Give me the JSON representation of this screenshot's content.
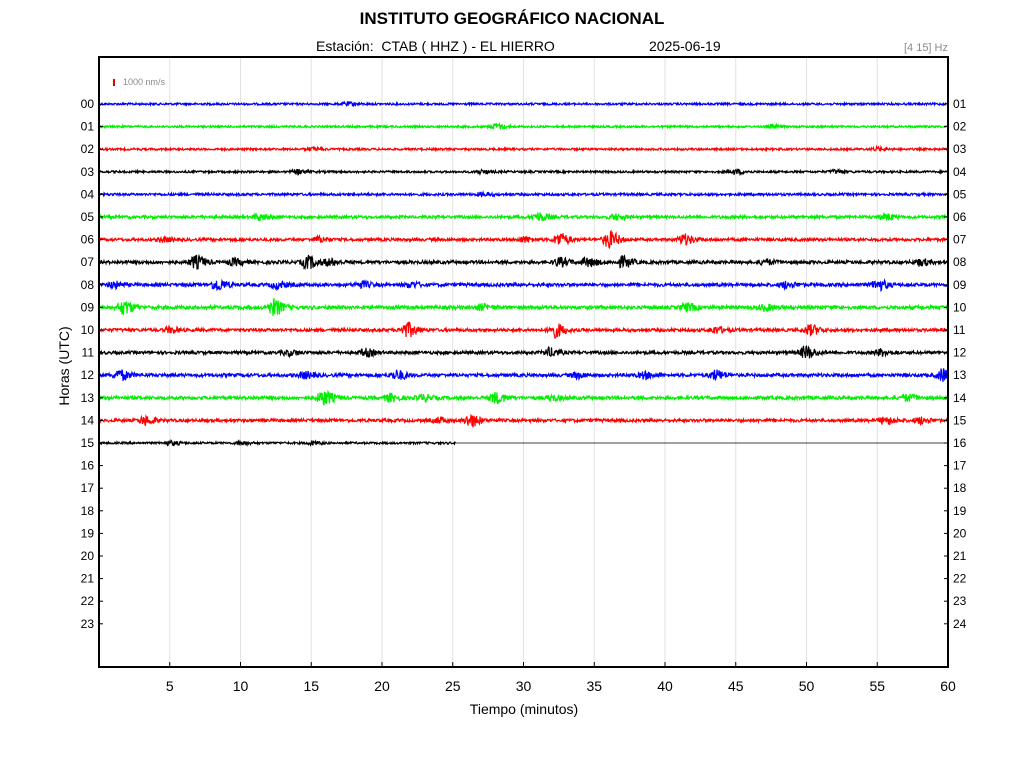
{
  "header": {
    "title": "INSTITUTO GEOGRÁFICO NACIONAL",
    "station": "Estación:  CTAB ( HHZ ) - EL HIERRO",
    "date": "2025-06-19",
    "filter": "[4 15] Hz",
    "amplitude_scale": "1000 nm/s"
  },
  "chart_data": {
    "type": "line",
    "title": "INSTITUTO GEOGRÁFICO NACIONAL",
    "xlabel": "Tiempo (minutos)",
    "ylabel": "Horas (UTC)",
    "xlim": [
      0,
      60
    ],
    "x_ticks": [
      "5",
      "10",
      "15",
      "20",
      "25",
      "30",
      "35",
      "40",
      "45",
      "50",
      "55",
      "60"
    ],
    "y_ticks_left": [
      "00",
      "01",
      "02",
      "03",
      "04",
      "05",
      "06",
      "07",
      "08",
      "09",
      "10",
      "11",
      "12",
      "13",
      "14",
      "15",
      "16",
      "17",
      "18",
      "19",
      "20",
      "21",
      "22",
      "23"
    ],
    "y_ticks_right": [
      "01",
      "02",
      "03",
      "04",
      "05",
      "06",
      "07",
      "08",
      "09",
      "10",
      "11",
      "12",
      "13",
      "14",
      "15",
      "16",
      "17",
      "18",
      "19",
      "20",
      "21",
      "22",
      "23",
      "24"
    ],
    "grid": "vertical",
    "trace_colors": [
      "#0000ff",
      "#00ee00",
      "#ff0000",
      "#000000"
    ],
    "series": [
      {
        "hour": "00",
        "color": "#0000ff",
        "end_minute": 60,
        "amplitude": 1.0,
        "bursts": [
          [
            17.5,
            1.6
          ]
        ]
      },
      {
        "hour": "01",
        "color": "#00ee00",
        "end_minute": 60,
        "amplitude": 1.0,
        "bursts": [
          [
            28,
            2.5
          ],
          [
            47.5,
            1.6
          ]
        ]
      },
      {
        "hour": "02",
        "color": "#ff0000",
        "end_minute": 60,
        "amplitude": 1.0,
        "bursts": [
          [
            15,
            1.5
          ],
          [
            55,
            1.5
          ]
        ]
      },
      {
        "hour": "03",
        "color": "#000000",
        "end_minute": 60,
        "amplitude": 1.0,
        "bursts": [
          [
            14,
            2
          ],
          [
            27,
            1.7
          ],
          [
            45,
            2
          ],
          [
            52,
            1.6
          ]
        ]
      },
      {
        "hour": "04",
        "color": "#0000ff",
        "end_minute": 60,
        "amplitude": 1.2,
        "bursts": [
          [
            27,
            1.5
          ]
        ]
      },
      {
        "hour": "05",
        "color": "#00ee00",
        "end_minute": 60,
        "amplitude": 1.4,
        "bursts": [
          [
            11.3,
            3
          ],
          [
            31,
            4
          ],
          [
            36.5,
            2.5
          ],
          [
            55.5,
            3
          ]
        ]
      },
      {
        "hour": "06",
        "color": "#ff0000",
        "end_minute": 60,
        "amplitude": 1.4,
        "bursts": [
          [
            4.5,
            2
          ],
          [
            15.5,
            2.5
          ],
          [
            30,
            2.5
          ],
          [
            32.5,
            6
          ],
          [
            36,
            8
          ],
          [
            41.3,
            5
          ]
        ]
      },
      {
        "hour": "07",
        "color": "#000000",
        "end_minute": 60,
        "amplitude": 1.6,
        "bursts": [
          [
            6.8,
            6
          ],
          [
            9.5,
            3
          ],
          [
            14.7,
            6
          ],
          [
            16.2,
            3
          ],
          [
            32.5,
            4
          ],
          [
            34.5,
            4
          ],
          [
            37,
            5
          ],
          [
            47,
            2.5
          ],
          [
            58,
            3
          ]
        ]
      },
      {
        "hour": "08",
        "color": "#0000ff",
        "end_minute": 60,
        "amplitude": 1.6,
        "bursts": [
          [
            1,
            3
          ],
          [
            8.3,
            5.5
          ],
          [
            12.5,
            3
          ],
          [
            18.5,
            3
          ],
          [
            22,
            2.5
          ],
          [
            48.5,
            3
          ],
          [
            55,
            5
          ]
        ]
      },
      {
        "hour": "09",
        "color": "#00ee00",
        "end_minute": 60,
        "amplitude": 1.7,
        "bursts": [
          [
            1.7,
            6.5
          ],
          [
            12.3,
            7.5
          ],
          [
            41.5,
            3.5
          ],
          [
            27,
            2.5
          ],
          [
            47,
            2.5
          ]
        ]
      },
      {
        "hour": "10",
        "color": "#ff0000",
        "end_minute": 60,
        "amplitude": 1.5,
        "bursts": [
          [
            5,
            2.5
          ],
          [
            21.7,
            7
          ],
          [
            32.2,
            6.5
          ],
          [
            43.5,
            3
          ],
          [
            50.2,
            5
          ]
        ]
      },
      {
        "hour": "11",
        "color": "#000000",
        "end_minute": 60,
        "amplitude": 1.5,
        "bursts": [
          [
            13.3,
            2.5
          ],
          [
            18.8,
            3.5
          ],
          [
            31.8,
            4
          ],
          [
            49.9,
            6
          ],
          [
            55.2,
            3
          ]
        ]
      },
      {
        "hour": "12",
        "color": "#0000ff",
        "end_minute": 60,
        "amplitude": 1.6,
        "bursts": [
          [
            1.4,
            5
          ],
          [
            14.5,
            3
          ],
          [
            21,
            4.5
          ],
          [
            33.7,
            2.5
          ],
          [
            38.5,
            3
          ],
          [
            43.5,
            4.5
          ],
          [
            59.6,
            6
          ]
        ]
      },
      {
        "hour": "13",
        "color": "#00ee00",
        "end_minute": 60,
        "amplitude": 1.6,
        "bursts": [
          [
            15.8,
            7
          ],
          [
            20.5,
            3.5
          ],
          [
            22.8,
            3
          ],
          [
            28,
            5
          ],
          [
            32,
            2.5
          ],
          [
            57,
            3
          ]
        ]
      },
      {
        "hour": "14",
        "color": "#ff0000",
        "end_minute": 60,
        "amplitude": 1.5,
        "bursts": [
          [
            3.2,
            4
          ],
          [
            26.2,
            6
          ],
          [
            24,
            2.5
          ],
          [
            55.5,
            3.5
          ],
          [
            58,
            3
          ]
        ]
      },
      {
        "hour": "15",
        "color": "#000000",
        "end_minute": 25.2,
        "amplitude": 1.0,
        "bursts": [
          [
            5,
            2
          ],
          [
            10,
            1.5
          ],
          [
            15,
            1.5
          ]
        ]
      }
    ]
  }
}
